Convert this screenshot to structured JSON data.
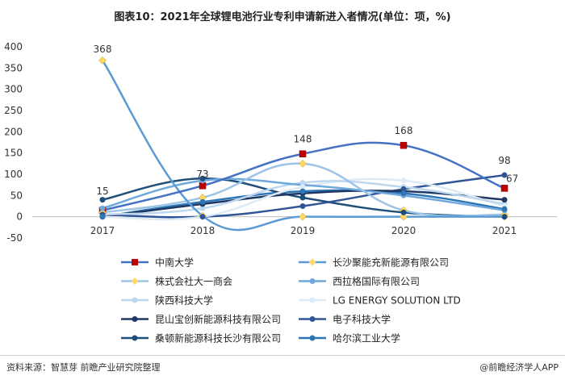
{
  "title": "图表10：2021年全球锂电池行业专利申请新进入者情况(单位：项，%)",
  "footer": {
    "source": "资料来源：智慧芽 前瞻产业研究院整理",
    "brand": "@前瞻经济学人APP"
  },
  "chart_data": {
    "type": "line",
    "categories": [
      "2017",
      "2018",
      "2019",
      "2020",
      "2021"
    ],
    "ylim": [
      -50,
      400
    ],
    "yticks": [
      -50,
      0,
      50,
      100,
      150,
      200,
      250,
      300,
      350,
      400
    ],
    "grid": false,
    "legend_position": "bottom",
    "series": [
      {
        "name": "中南大学",
        "values": [
          15,
          73,
          148,
          168,
          67
        ],
        "color": "#4472c4",
        "marker": "square",
        "marker_color": "#c00000",
        "labels": true
      },
      {
        "name": "长沙聚能充新能源有限公司",
        "values": [
          368,
          2,
          0,
          0,
          0
        ],
        "color": "#5b9bd5",
        "marker": "diamond",
        "marker_color": "#ffd966",
        "labels": true
      },
      {
        "name": "株式会社大一商会",
        "values": [
          10,
          45,
          125,
          15,
          5
        ],
        "color": "#9dc3e6",
        "marker": "diamond",
        "marker_color": "#ffd966",
        "labels": false
      },
      {
        "name": "西拉格国际有限公司",
        "values": [
          20,
          85,
          75,
          50,
          15
        ],
        "color": "#6fa8dc",
        "marker": "circle",
        "marker_color": "#6fa8dc",
        "labels": false
      },
      {
        "name": "陕西科技大学",
        "values": [
          5,
          20,
          80,
          70,
          30
        ],
        "color": "#bdd7ee",
        "marker": "circle",
        "marker_color": "#bdd7ee",
        "labels": false
      },
      {
        "name": "LG ENERGY SOLUTION LTD",
        "values": [
          0,
          0,
          70,
          85,
          25
        ],
        "color": "#deebf7",
        "marker": "circle",
        "marker_color": "#deebf7",
        "labels": false
      },
      {
        "name": "昆山宝创新能源科技有限公司",
        "values": [
          0,
          30,
          55,
          60,
          40
        ],
        "color": "#1f3864",
        "marker": "circle",
        "marker_color": "#1f3864",
        "labels": false
      },
      {
        "name": "电子科技大学",
        "values": [
          5,
          0,
          25,
          65,
          98
        ],
        "color": "#2f5597",
        "marker": "circle",
        "marker_color": "#2f5597",
        "labels": true
      },
      {
        "name": "桑顿新能源科技长沙有限公司",
        "values": [
          40,
          90,
          45,
          10,
          0
        ],
        "color": "#1f4e79",
        "marker": "circle",
        "marker_color": "#1f4e79",
        "labels": false
      },
      {
        "name": "哈尔滨工业大学",
        "values": [
          0,
          35,
          60,
          55,
          18
        ],
        "color": "#2e75b6",
        "marker": "circle",
        "marker_color": "#2e75b6",
        "labels": false
      }
    ],
    "data_labels": [
      {
        "series": "中南大学",
        "category": "2017",
        "text": "15"
      },
      {
        "series": "长沙聚能充新能源有限公司",
        "category": "2017",
        "text": "368"
      },
      {
        "series": "中南大学",
        "category": "2018",
        "text": "73"
      },
      {
        "series": "中南大学",
        "category": "2019",
        "text": "148"
      },
      {
        "series": "中南大学",
        "category": "2020",
        "text": "168"
      },
      {
        "series": "电子科技大学",
        "category": "2021",
        "text": "98"
      },
      {
        "series": "中南大学",
        "category": "2021",
        "text": "67"
      }
    ]
  }
}
